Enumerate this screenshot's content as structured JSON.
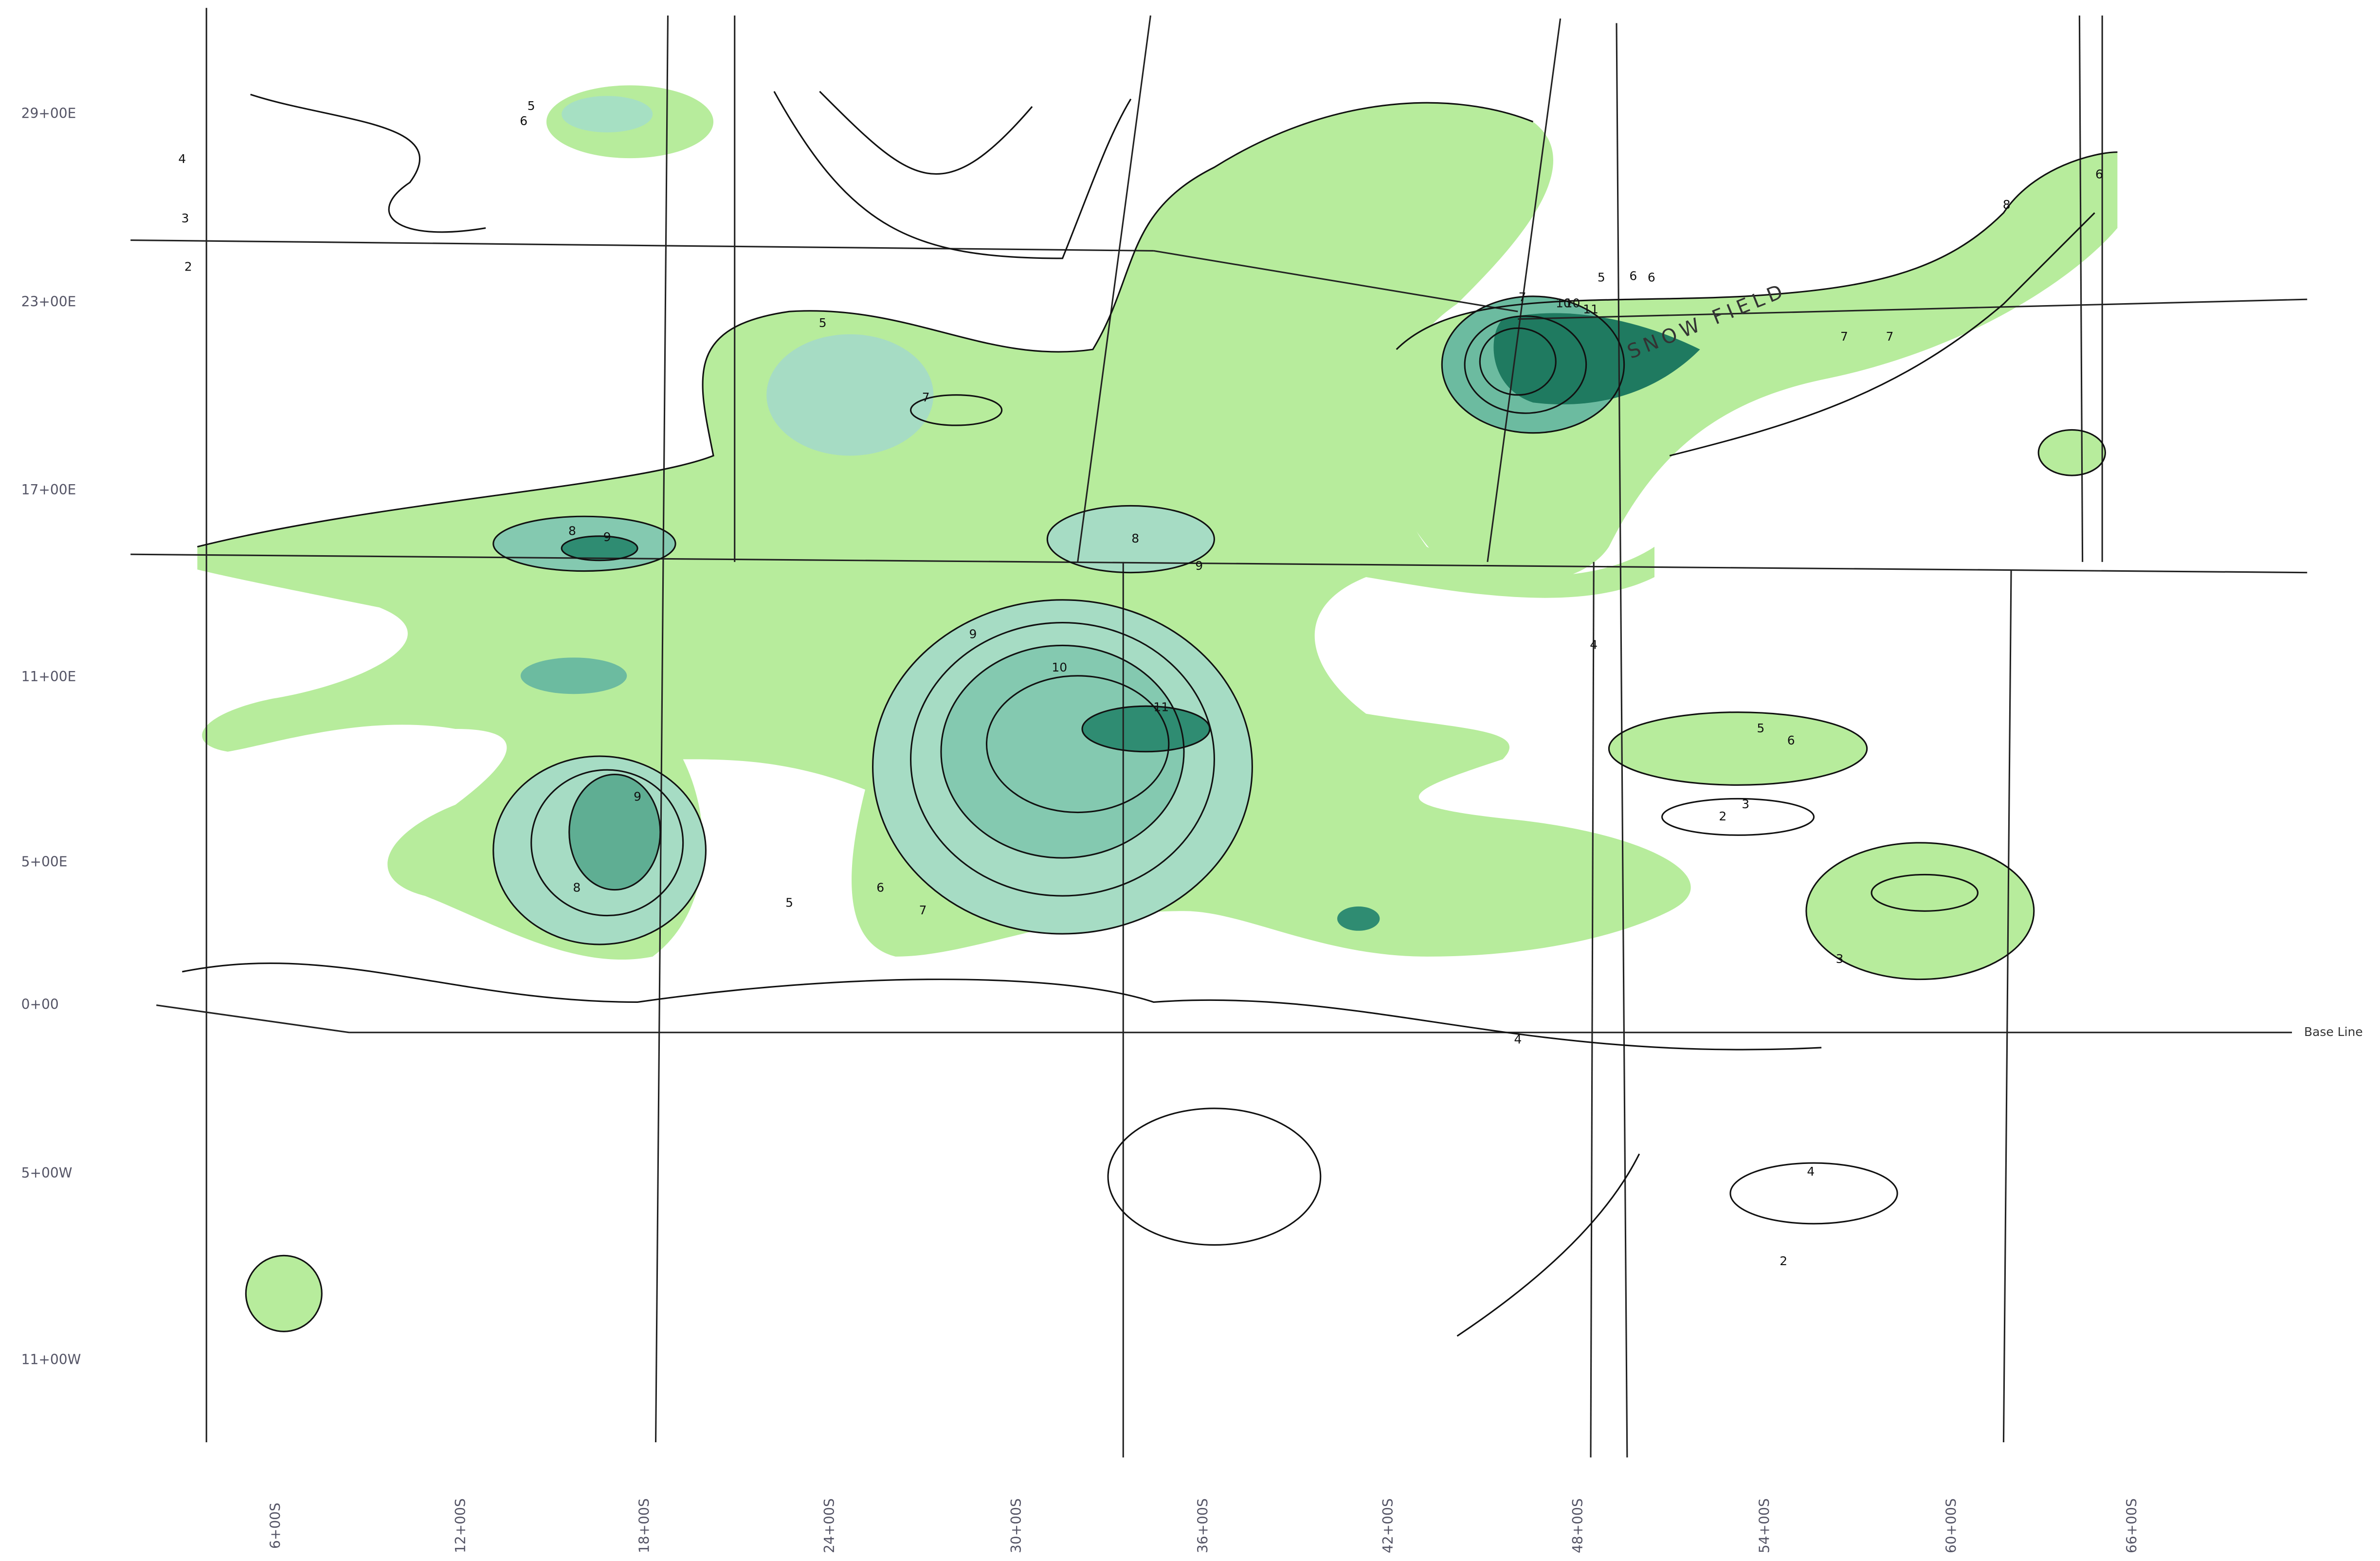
{
  "grid_labels": {
    "rows": [
      "29+00E",
      "23+00E",
      "17+00E",
      "11+00E",
      "5+00E",
      "0+00",
      "5+00W",
      "11+00W"
    ],
    "columns": [
      "6+00S",
      "12+00S",
      "18+00S",
      "24+00S",
      "30+00S",
      "36+00S",
      "42+00S",
      "48+00S",
      "54+00S",
      "60+00S",
      "66+00S"
    ]
  },
  "annotations": {
    "snow_field": "SNOW FIELD",
    "base_line": "Base Line"
  },
  "contour_labels": [
    "2",
    "3",
    "4",
    "5",
    "6",
    "7",
    "8",
    "9",
    "10",
    "11",
    "5",
    "6",
    "7",
    "8",
    "9",
    "6",
    "7",
    "8",
    "9",
    "10",
    "11",
    "5",
    "6",
    "7",
    "8",
    "9",
    "10",
    "5",
    "6",
    "4",
    "3",
    "2",
    "4",
    "2",
    "3",
    "4",
    "5",
    "6",
    "7"
  ]
}
